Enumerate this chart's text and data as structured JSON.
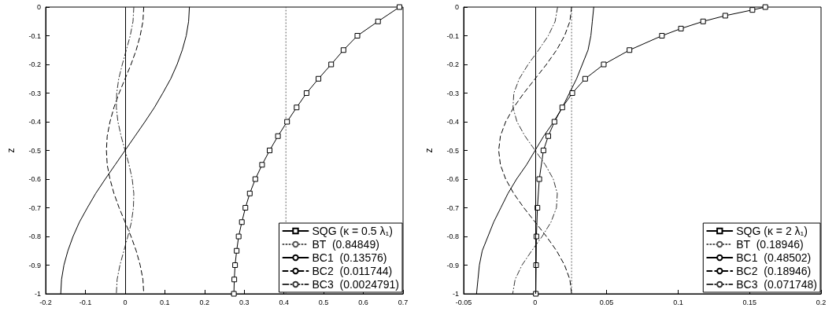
{
  "chart_data": [
    {
      "type": "line",
      "ylabel": "z",
      "xlim": [
        -0.2,
        0.7
      ],
      "xticks": [
        -0.2,
        -0.1,
        0,
        0.1,
        0.2,
        0.3,
        0.4,
        0.5,
        0.6,
        0.7
      ],
      "ylim": [
        -1,
        0
      ],
      "yticks": [
        -1,
        -0.9,
        -0.8,
        -0.7,
        -0.6,
        -0.5,
        -0.4,
        -0.3,
        -0.2,
        -0.1,
        0
      ],
      "grid": false,
      "legend": "bottom right",
      "ref_lines": [
        {
          "axis": "x",
          "value": 0,
          "label": null,
          "color": "#000000",
          "line_style": "solid"
        }
      ],
      "series": [
        {
          "name": "SQG (κ = 0.5 λ₁)",
          "color": "#000000",
          "marker": "square",
          "line_style": "solid",
          "x": [
            0.691,
            0.637,
            0.585,
            0.55,
            0.519,
            0.487,
            0.457,
            0.432,
            0.408,
            0.385,
            0.364,
            0.345,
            0.328,
            0.314,
            0.303,
            0.294,
            0.286,
            0.281,
            0.277,
            0.275,
            0.274
          ],
          "values": [
            0,
            -0.05,
            -0.1,
            -0.15,
            -0.2,
            -0.25,
            -0.3,
            -0.35,
            -0.4,
            -0.45,
            -0.5,
            -0.55,
            -0.6,
            -0.65,
            -0.7,
            -0.75,
            -0.8,
            -0.85,
            -0.9,
            -0.95,
            -1
          ]
        },
        {
          "name": "BT  (0.84849)",
          "color": "#555555",
          "marker": "none",
          "line_style": "dotted",
          "x": [
            0.405,
            0.405
          ],
          "values": [
            0,
            -1
          ]
        },
        {
          "name": "BC1  (0.13576)",
          "color": "#000000",
          "marker": "none",
          "line_style": "solid",
          "x": [
            0.162,
            0.16,
            0.154,
            0.144,
            0.131,
            0.115,
            0.095,
            0.074,
            0.05,
            0.025,
            0,
            -0.025,
            -0.05,
            -0.074,
            -0.095,
            -0.115,
            -0.131,
            -0.144,
            -0.154,
            -0.16,
            -0.162
          ],
          "values": [
            0,
            -0.05,
            -0.1,
            -0.15,
            -0.2,
            -0.25,
            -0.3,
            -0.35,
            -0.4,
            -0.45,
            -0.5,
            -0.55,
            -0.6,
            -0.65,
            -0.7,
            -0.75,
            -0.8,
            -0.85,
            -0.9,
            -0.95,
            -1
          ]
        },
        {
          "name": "BC2  (0.011744)",
          "color": "#000000",
          "marker": "none",
          "line_style": "dashed",
          "x": [
            0.047,
            0.045,
            0.038,
            0.028,
            0.015,
            0,
            -0.015,
            -0.028,
            -0.038,
            -0.045,
            -0.047,
            -0.045,
            -0.038,
            -0.028,
            -0.015,
            0,
            0.015,
            0.028,
            0.038,
            0.045,
            0.047
          ],
          "values": [
            0,
            -0.05,
            -0.1,
            -0.15,
            -0.2,
            -0.25,
            -0.3,
            -0.35,
            -0.4,
            -0.45,
            -0.5,
            -0.55,
            -0.6,
            -0.65,
            -0.7,
            -0.75,
            -0.8,
            -0.85,
            -0.9,
            -0.95,
            -1
          ]
        },
        {
          "name": "BC3  (0.0024791)",
          "color": "#333333",
          "marker": "none",
          "line_style": "dashdot",
          "x": [
            0.022,
            0.02,
            0.013,
            0.003,
            -0.007,
            -0.016,
            -0.021,
            -0.022,
            -0.018,
            -0.01,
            0,
            0.01,
            0.018,
            0.022,
            0.021,
            0.016,
            0.007,
            -0.003,
            -0.013,
            -0.02,
            -0.022
          ],
          "values": [
            0,
            -0.05,
            -0.1,
            -0.15,
            -0.2,
            -0.25,
            -0.3,
            -0.35,
            -0.4,
            -0.45,
            -0.5,
            -0.55,
            -0.6,
            -0.65,
            -0.7,
            -0.75,
            -0.8,
            -0.85,
            -0.9,
            -0.95,
            -1
          ]
        }
      ]
    },
    {
      "type": "line",
      "ylabel": "z",
      "xlim": [
        -0.05,
        0.2
      ],
      "xticks": [
        -0.05,
        0,
        0.05,
        0.1,
        0.15,
        0.2
      ],
      "ylim": [
        -1,
        0
      ],
      "yticks": [
        -1,
        -0.9,
        -0.8,
        -0.7,
        -0.6,
        -0.5,
        -0.4,
        -0.3,
        -0.2,
        -0.1,
        0
      ],
      "grid": false,
      "legend": "bottom right",
      "ref_lines": [
        {
          "axis": "x",
          "value": 0,
          "label": null,
          "color": "#000000",
          "line_style": "solid"
        }
      ],
      "series": [
        {
          "name": "SQG (κ = 2 λ₁)",
          "color": "#000000",
          "marker": "square",
          "line_style": "solid",
          "x": [
            0.161,
            0.152,
            0.133,
            0.1175,
            0.102,
            0.0887,
            0.066,
            0.048,
            0.035,
            0.026,
            0.019,
            0.0135,
            0.0092,
            0.0058,
            0.0029,
            0.0016,
            0.0009,
            0.0007,
            0.0005
          ],
          "values": [
            0,
            -0.01,
            -0.03,
            -0.05,
            -0.075,
            -0.1,
            -0.15,
            -0.2,
            -0.25,
            -0.3,
            -0.35,
            -0.4,
            -0.45,
            -0.5,
            -0.6,
            -0.7,
            -0.8,
            -0.9,
            -1
          ]
        },
        {
          "name": "BT  (0.18946)",
          "color": "#555555",
          "marker": "none",
          "line_style": "dotted",
          "x": [
            0.0255,
            0.0255
          ],
          "values": [
            0,
            -1
          ]
        },
        {
          "name": "BC1  (0.48502)",
          "color": "#000000",
          "marker": "none",
          "line_style": "solid",
          "x": [
            0.041,
            0.04,
            0.039,
            0.037,
            0.033,
            0.029,
            0.024,
            0.019,
            0.013,
            0.006,
            0,
            -0.006,
            -0.013,
            -0.019,
            -0.024,
            -0.029,
            -0.033,
            -0.037,
            -0.039,
            -0.04,
            -0.041
          ],
          "values": [
            0,
            -0.05,
            -0.1,
            -0.15,
            -0.2,
            -0.25,
            -0.3,
            -0.35,
            -0.4,
            -0.45,
            -0.5,
            -0.55,
            -0.6,
            -0.65,
            -0.7,
            -0.75,
            -0.8,
            -0.85,
            -0.9,
            -0.95,
            -1
          ]
        },
        {
          "name": "BC2  (0.18946)",
          "color": "#000000",
          "marker": "none",
          "line_style": "dashed",
          "x": [
            0.0255,
            0.0243,
            0.0206,
            0.015,
            0.0079,
            0,
            -0.0079,
            -0.015,
            -0.0206,
            -0.0243,
            -0.0255,
            -0.0243,
            -0.0206,
            -0.015,
            -0.0079,
            0,
            0.0079,
            0.015,
            0.0206,
            0.0243,
            0.0255
          ],
          "values": [
            0,
            -0.05,
            -0.1,
            -0.15,
            -0.2,
            -0.25,
            -0.3,
            -0.35,
            -0.4,
            -0.45,
            -0.5,
            -0.55,
            -0.6,
            -0.65,
            -0.7,
            -0.75,
            -0.8,
            -0.85,
            -0.9,
            -0.95,
            -1
          ]
        },
        {
          "name": "BC3  (0.071748)",
          "color": "#333333",
          "marker": "none",
          "line_style": "dashdot",
          "x": [
            0.0157,
            0.014,
            0.0092,
            0.0024,
            -0.0049,
            -0.0111,
            -0.0149,
            -0.0155,
            -0.0127,
            -0.0071,
            0,
            0.0071,
            0.0127,
            0.0155,
            0.0149,
            0.0111,
            0.0049,
            -0.0024,
            -0.0092,
            -0.014,
            -0.0157
          ],
          "values": [
            0,
            -0.05,
            -0.1,
            -0.15,
            -0.2,
            -0.25,
            -0.3,
            -0.35,
            -0.4,
            -0.45,
            -0.5,
            -0.55,
            -0.6,
            -0.65,
            -0.7,
            -0.75,
            -0.8,
            -0.85,
            -0.9,
            -0.95,
            -1
          ]
        }
      ]
    }
  ]
}
